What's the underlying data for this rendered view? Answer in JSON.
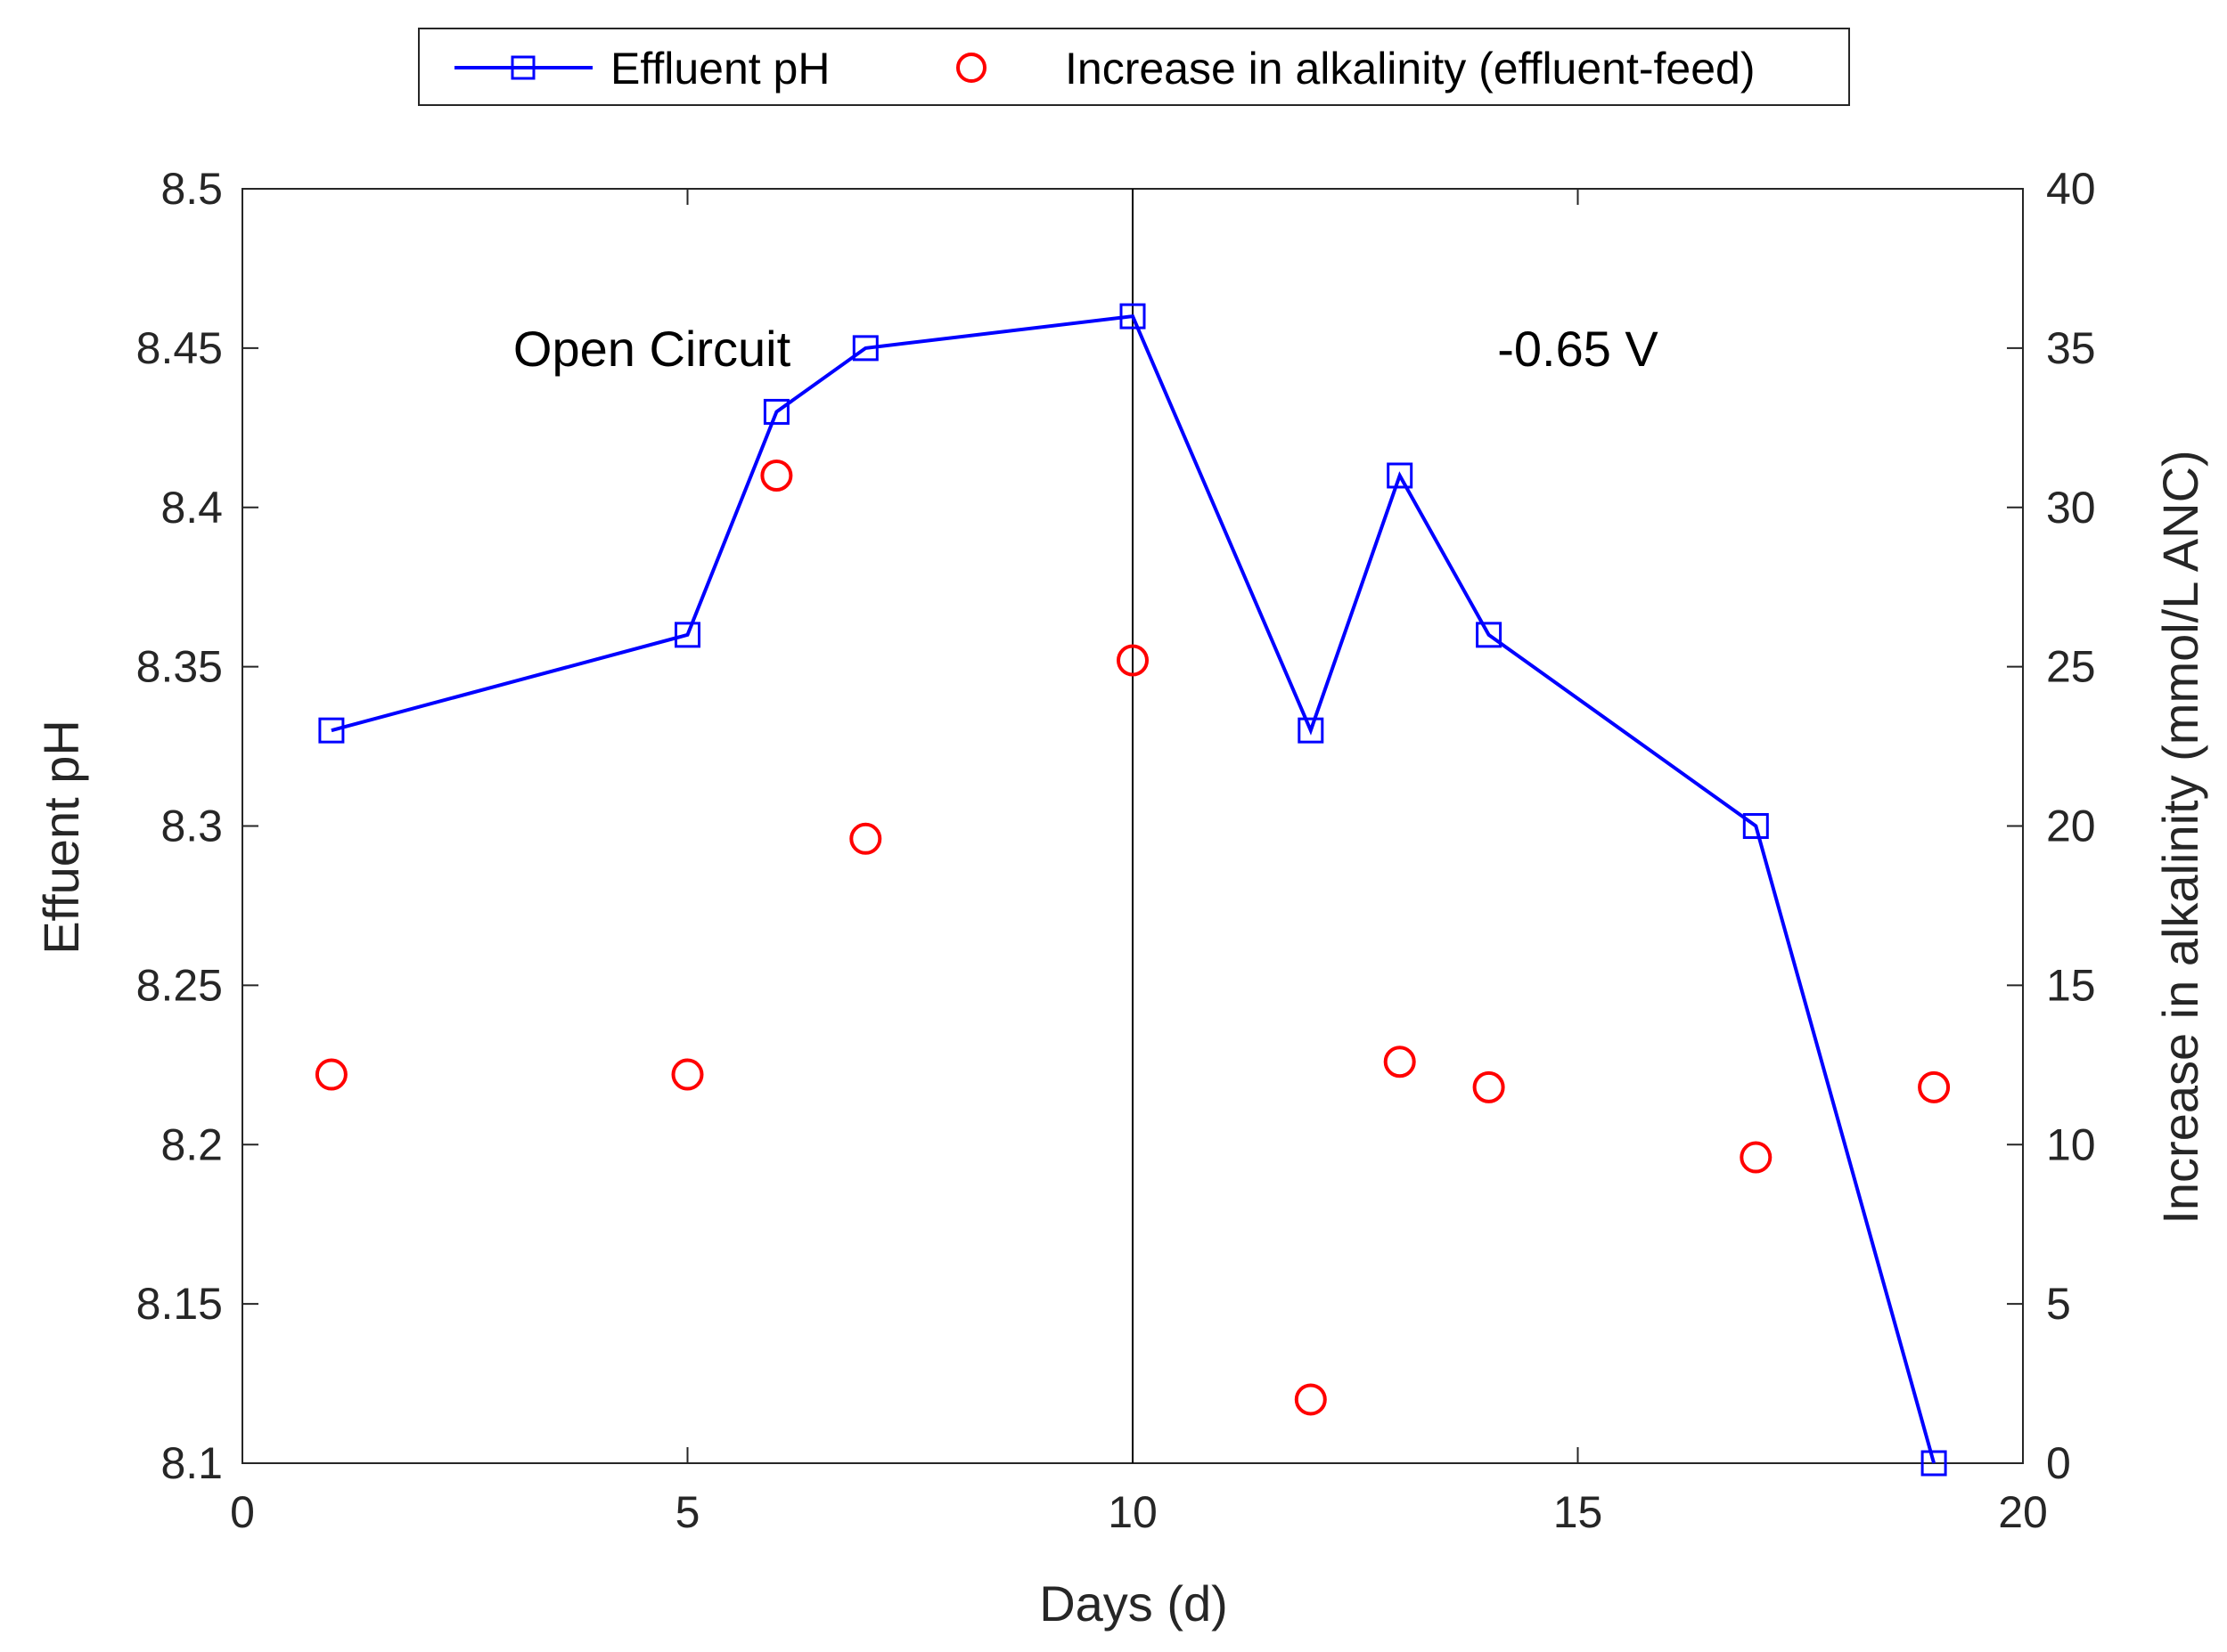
{
  "chart_data": {
    "type": "line",
    "title": "",
    "xlabel": "Days (d)",
    "ylabel_left": "Effuent pH",
    "ylabel_right": "Increase in alkalinity (mmol/L ANC)",
    "xlim": [
      0,
      20
    ],
    "ylim_left": [
      8.1,
      8.5
    ],
    "ylim_right": [
      0,
      40
    ],
    "x_ticks": [
      "0",
      "5",
      "10",
      "15",
      "20"
    ],
    "y_left_ticks": [
      "8.1",
      "8.15",
      "8.2",
      "8.25",
      "8.3",
      "8.35",
      "8.4",
      "8.45",
      "8.5"
    ],
    "y_right_ticks": [
      "0",
      "5",
      "10",
      "15",
      "20",
      "25",
      "30",
      "35",
      "40"
    ],
    "grid": false,
    "legend_position": "top",
    "series": [
      {
        "name": "Effluent pH",
        "type": "line",
        "marker": "square",
        "axis": "left",
        "color": "#0000ff",
        "x": [
          1,
          5,
          6,
          7,
          10,
          12,
          13,
          14,
          17,
          19
        ],
        "y": [
          8.33,
          8.36,
          8.43,
          8.45,
          8.46,
          8.33,
          8.41,
          8.36,
          8.3,
          8.1
        ]
      },
      {
        "name": "Increase in alkalinity (effluent-feed)",
        "type": "scatter",
        "marker": "circle",
        "axis": "right",
        "color": "#ff0000",
        "x": [
          1,
          5,
          6,
          7,
          10,
          12,
          13,
          14,
          17,
          19
        ],
        "y": [
          12.2,
          12.2,
          31.0,
          19.6,
          25.2,
          2.0,
          12.6,
          11.8,
          9.6,
          11.8
        ]
      }
    ],
    "reference_line": {
      "x": 10
    },
    "annotations": [
      {
        "text": "Open Circuit",
        "x": 4.6,
        "y": 8.45
      },
      {
        "text": "-0.65 V",
        "x": 15.0,
        "y": 8.45
      }
    ]
  }
}
